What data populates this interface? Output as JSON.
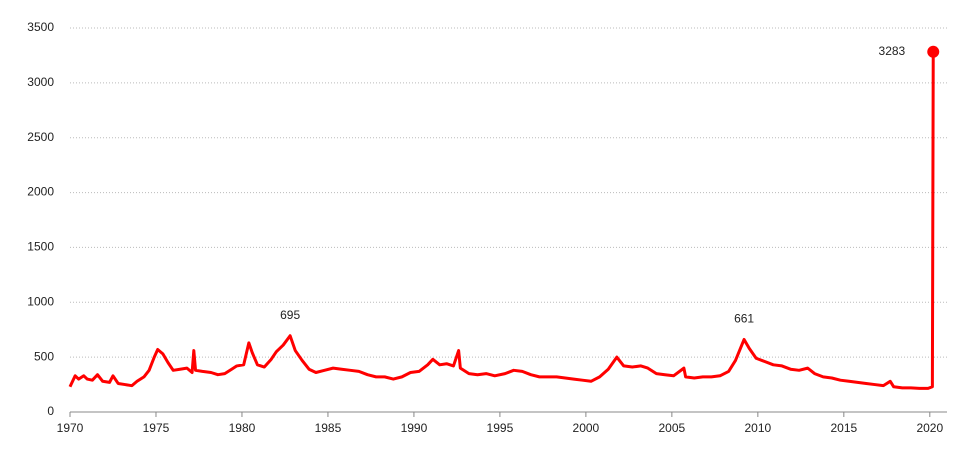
{
  "chart_data": {
    "type": "line",
    "x": [
      1970.0,
      1970.3,
      1970.5,
      1970.8,
      1971.0,
      1971.3,
      1971.6,
      1971.9,
      1972.3,
      1972.5,
      1972.8,
      1973.2,
      1973.6,
      1973.9,
      1974.3,
      1974.6,
      1974.9,
      1975.1,
      1975.4,
      1975.7,
      1976.0,
      1976.4,
      1976.8,
      1977.1,
      1977.2,
      1977.3,
      1977.7,
      1978.2,
      1978.6,
      1979.0,
      1979.4,
      1979.7,
      1980.1,
      1980.4,
      1980.6,
      1980.9,
      1981.3,
      1981.7,
      1982.0,
      1982.4,
      1982.8,
      1983.1,
      1983.5,
      1983.9,
      1984.3,
      1984.8,
      1985.3,
      1985.8,
      1986.3,
      1986.8,
      1987.3,
      1987.8,
      1988.3,
      1988.8,
      1989.3,
      1989.8,
      1990.3,
      1990.8,
      1991.1,
      1991.5,
      1991.9,
      1992.3,
      1992.6,
      1992.7,
      1993.2,
      1993.7,
      1994.2,
      1994.7,
      1995.3,
      1995.8,
      1996.3,
      1996.8,
      1997.3,
      1997.8,
      1998.3,
      1998.8,
      1999.3,
      1999.8,
      2000.3,
      2000.8,
      2001.3,
      2001.8,
      2002.2,
      2002.7,
      2003.2,
      2003.6,
      2004.1,
      2004.6,
      2005.1,
      2005.7,
      2005.8,
      2006.3,
      2006.8,
      2007.3,
      2007.8,
      2008.3,
      2008.7,
      2009.2,
      2009.5,
      2009.9,
      2010.4,
      2010.9,
      2011.4,
      2011.9,
      2012.4,
      2012.9,
      2013.3,
      2013.8,
      2014.3,
      2014.8,
      2015.3,
      2015.8,
      2016.3,
      2016.8,
      2017.3,
      2017.7,
      2017.9,
      2018.4,
      2018.9,
      2019.4,
      2019.9,
      2020.15,
      2020.2
    ],
    "values": [
      230,
      330,
      300,
      330,
      300,
      290,
      340,
      280,
      270,
      330,
      260,
      250,
      240,
      280,
      320,
      380,
      500,
      570,
      530,
      450,
      380,
      390,
      400,
      360,
      560,
      380,
      370,
      360,
      340,
      350,
      390,
      420,
      430,
      630,
      540,
      430,
      410,
      480,
      550,
      610,
      695,
      560,
      470,
      390,
      360,
      380,
      400,
      390,
      380,
      370,
      340,
      320,
      320,
      300,
      320,
      360,
      370,
      430,
      480,
      430,
      440,
      420,
      560,
      400,
      350,
      340,
      350,
      330,
      350,
      380,
      370,
      340,
      320,
      320,
      320,
      310,
      300,
      290,
      280,
      320,
      390,
      500,
      420,
      410,
      420,
      400,
      350,
      340,
      330,
      400,
      320,
      310,
      320,
      320,
      330,
      370,
      470,
      661,
      580,
      490,
      460,
      430,
      420,
      390,
      380,
      400,
      350,
      320,
      310,
      290,
      280,
      270,
      260,
      250,
      240,
      280,
      230,
      220,
      220,
      215,
      215,
      230,
      3283
    ],
    "color": "#ff0000",
    "end_marker": true,
    "annotations": [
      {
        "x": 1982.8,
        "y": 695,
        "position": "above"
      },
      {
        "x": 2009.2,
        "y": 661,
        "position": "above"
      },
      {
        "x": 2020.2,
        "y": 3283,
        "position": "left"
      }
    ],
    "xlim": [
      1970,
      2021
    ],
    "xticks": [
      1970,
      1975,
      1980,
      1985,
      1990,
      1995,
      2000,
      2005,
      2010,
      2015,
      2020
    ],
    "ylim": [
      0,
      3500
    ],
    "yticks": [
      0,
      500,
      1000,
      1500,
      2000,
      2500,
      3000,
      3500
    ],
    "grid": true
  }
}
